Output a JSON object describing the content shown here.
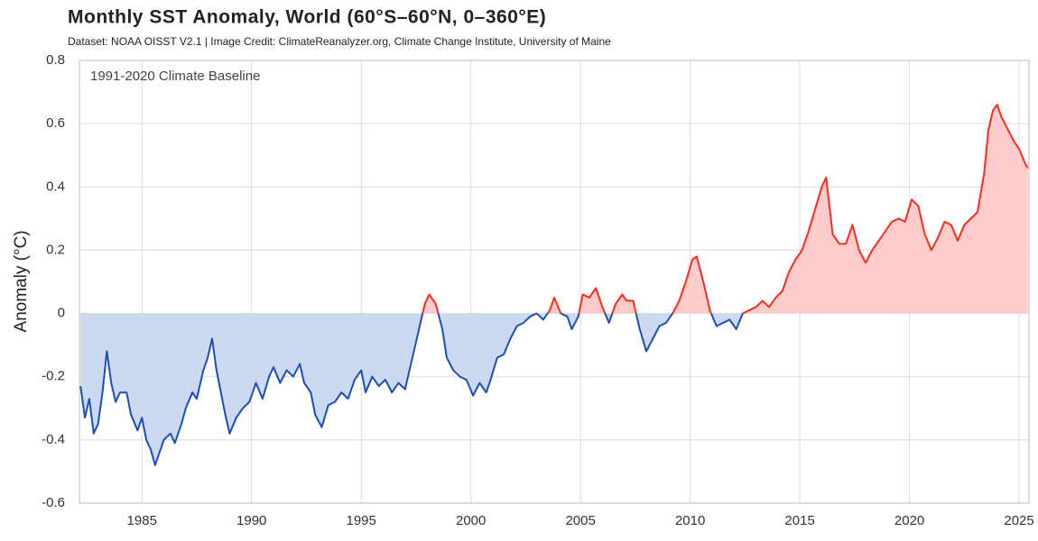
{
  "chart_data": {
    "type": "line",
    "title": "Monthly SST Anomaly, World (60°S–60°N, 0–360°E)",
    "subtitle": "Dataset: NOAA OISST V2.1 | Image Credit: ClimateReanalyzer.org, Climate Change Institute, University of Maine",
    "annotation": "1991-2020 Climate Baseline",
    "y_label": "Anomaly (°C)",
    "xlim": [
      1982.15,
      2025.45
    ],
    "xticks": [
      1985,
      1990,
      1995,
      2000,
      2005,
      2010,
      2015,
      2020,
      2025
    ],
    "ylim": [
      -0.6,
      0.8
    ],
    "yticks": [
      -0.6,
      -0.4,
      -0.2,
      0,
      0.2,
      0.4,
      0.6,
      0.8
    ],
    "grid": true,
    "color_above": "#ff2a1a",
    "color_below": "#1a4fb8",
    "fill_above": "#ffcccc",
    "fill_below": "#ccd9f0",
    "x": [
      1982.2,
      1982.4,
      1982.6,
      1982.8,
      1983.0,
      1983.2,
      1983.4,
      1983.6,
      1983.8,
      1984.0,
      1984.3,
      1984.5,
      1984.8,
      1985.0,
      1985.2,
      1985.4,
      1985.6,
      1985.8,
      1986.0,
      1986.3,
      1986.5,
      1986.8,
      1987.0,
      1987.3,
      1987.5,
      1987.8,
      1988.0,
      1988.2,
      1988.4,
      1988.6,
      1988.8,
      1989.0,
      1989.3,
      1989.6,
      1989.9,
      1990.2,
      1990.5,
      1990.8,
      1991.0,
      1991.3,
      1991.6,
      1991.9,
      1992.2,
      1992.4,
      1992.7,
      1992.9,
      1993.2,
      1993.5,
      1993.8,
      1994.1,
      1994.4,
      1994.7,
      1995.0,
      1995.2,
      1995.5,
      1995.8,
      1996.1,
      1996.4,
      1996.7,
      1997.0,
      1997.3,
      1997.6,
      1997.9,
      1998.1,
      1998.4,
      1998.7,
      1998.9,
      1999.2,
      1999.5,
      1999.8,
      2000.1,
      2000.4,
      2000.7,
      2000.9,
      2001.2,
      2001.5,
      2001.8,
      2002.1,
      2002.4,
      2002.7,
      2003.0,
      2003.3,
      2003.6,
      2003.8,
      2004.1,
      2004.4,
      2004.6,
      2004.9,
      2005.1,
      2005.4,
      2005.7,
      2006.0,
      2006.3,
      2006.6,
      2006.9,
      2007.1,
      2007.4,
      2007.7,
      2008.0,
      2008.3,
      2008.6,
      2008.9,
      2009.2,
      2009.5,
      2009.8,
      2010.1,
      2010.3,
      2010.6,
      2010.9,
      2011.2,
      2011.5,
      2011.8,
      2012.1,
      2012.4,
      2012.7,
      2013.0,
      2013.3,
      2013.6,
      2013.9,
      2014.2,
      2014.5,
      2014.8,
      2015.1,
      2015.4,
      2015.7,
      2016.0,
      2016.2,
      2016.5,
      2016.8,
      2017.1,
      2017.4,
      2017.7,
      2018.0,
      2018.3,
      2018.6,
      2018.9,
      2019.2,
      2019.5,
      2019.8,
      2020.1,
      2020.4,
      2020.7,
      2021.0,
      2021.3,
      2021.6,
      2021.9,
      2022.2,
      2022.5,
      2022.8,
      2023.1,
      2023.4,
      2023.6,
      2023.8,
      2024.0,
      2024.2,
      2024.5,
      2024.8,
      2025.0,
      2025.3,
      2025.4
    ],
    "values": [
      -0.23,
      -0.33,
      -0.27,
      -0.38,
      -0.35,
      -0.25,
      -0.12,
      -0.22,
      -0.28,
      -0.25,
      -0.25,
      -0.32,
      -0.37,
      -0.33,
      -0.4,
      -0.43,
      -0.48,
      -0.44,
      -0.4,
      -0.38,
      -0.41,
      -0.35,
      -0.3,
      -0.25,
      -0.27,
      -0.18,
      -0.14,
      -0.08,
      -0.18,
      -0.25,
      -0.32,
      -0.38,
      -0.33,
      -0.3,
      -0.28,
      -0.22,
      -0.27,
      -0.2,
      -0.17,
      -0.22,
      -0.18,
      -0.2,
      -0.16,
      -0.22,
      -0.25,
      -0.32,
      -0.36,
      -0.29,
      -0.28,
      -0.25,
      -0.27,
      -0.21,
      -0.18,
      -0.25,
      -0.2,
      -0.23,
      -0.21,
      -0.25,
      -0.22,
      -0.24,
      -0.15,
      -0.06,
      0.03,
      0.06,
      0.03,
      -0.05,
      -0.14,
      -0.18,
      -0.2,
      -0.21,
      -0.26,
      -0.22,
      -0.25,
      -0.21,
      -0.14,
      -0.13,
      -0.08,
      -0.04,
      -0.03,
      -0.01,
      0.0,
      -0.02,
      0.01,
      0.05,
      0.0,
      -0.01,
      -0.05,
      -0.01,
      0.06,
      0.05,
      0.08,
      0.02,
      -0.03,
      0.03,
      0.06,
      0.04,
      0.04,
      -0.05,
      -0.12,
      -0.08,
      -0.04,
      -0.03,
      0.0,
      0.04,
      0.1,
      0.17,
      0.18,
      0.1,
      0.01,
      -0.04,
      -0.03,
      -0.02,
      -0.05,
      0.0,
      0.01,
      0.02,
      0.04,
      0.02,
      0.05,
      0.07,
      0.13,
      0.17,
      0.2,
      0.26,
      0.33,
      0.4,
      0.43,
      0.25,
      0.22,
      0.22,
      0.28,
      0.2,
      0.16,
      0.2,
      0.23,
      0.26,
      0.29,
      0.3,
      0.29,
      0.36,
      0.34,
      0.25,
      0.2,
      0.24,
      0.29,
      0.28,
      0.23,
      0.28,
      0.3,
      0.32,
      0.44,
      0.58,
      0.64,
      0.66,
      0.62,
      0.58,
      0.54,
      0.52,
      0.47,
      0.46
    ]
  }
}
